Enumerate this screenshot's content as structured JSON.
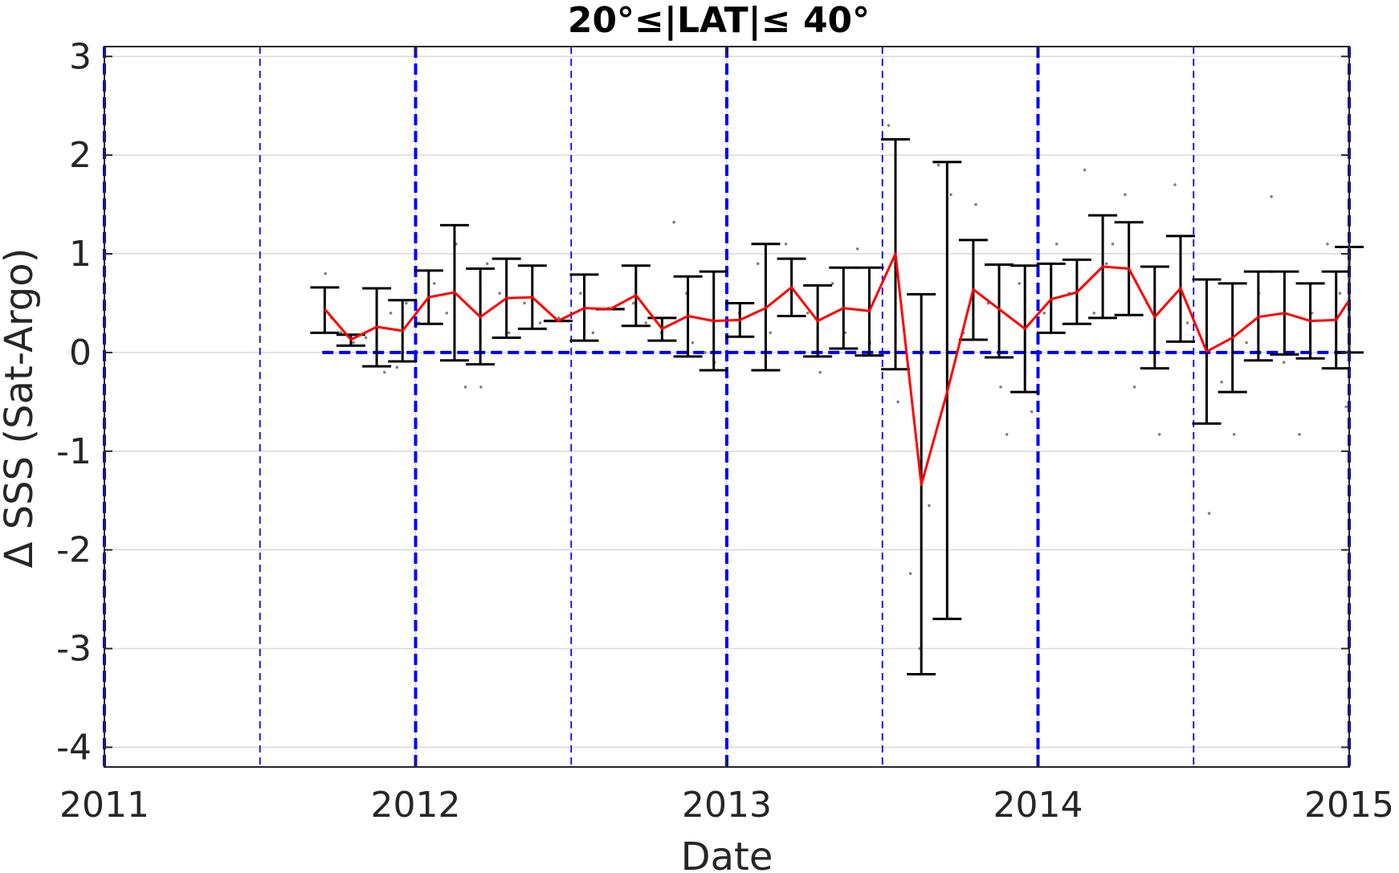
{
  "chart_data": {
    "type": "line",
    "title": "20°≤|LAT|≤ 40°",
    "xlabel": "Date",
    "ylabel": "Δ SSS (Sat-Argo)",
    "xlim": [
      2011,
      2015
    ],
    "ylim": [
      -4.2,
      3.1
    ],
    "x_ticks": [
      2011,
      2012,
      2013,
      2014,
      2015
    ],
    "x_tick_labels": [
      "2011",
      "2012",
      "2013",
      "2014",
      "2015"
    ],
    "y_ticks": [
      3,
      2,
      1,
      0,
      -1,
      -2,
      -3,
      -4
    ],
    "y_tick_labels": [
      "3",
      "2",
      "1",
      "0",
      "-1",
      "-2",
      "-3",
      "-4"
    ],
    "grid": true,
    "colors": {
      "mean_line": "#ff0000",
      "error_bars": "#000000",
      "scatter": "#808080",
      "reference_lines": "#0000ff",
      "grid": "#d9d9d9",
      "axes": "#262626"
    },
    "reference_lines": {
      "zero_line": {
        "y": 0,
        "x_from": 2011.7
      },
      "year_boundaries": [
        2011,
        2012,
        2013,
        2014,
        2015
      ],
      "half_year_lines": [
        2011.5,
        2012.5,
        2013.5,
        2014.5
      ]
    },
    "series": [
      {
        "kind": "monthly_mean_with_error_bars",
        "x": [
          2011.708,
          2011.792,
          2011.875,
          2011.958,
          2012.042,
          2012.125,
          2012.208,
          2012.292,
          2012.375,
          2012.458,
          2012.542,
          2012.625,
          2012.708,
          2012.792,
          2012.875,
          2012.958,
          2013.042,
          2013.125,
          2013.208,
          2013.292,
          2013.375,
          2013.458,
          2013.542,
          2013.625,
          2013.708,
          2013.792,
          2013.875,
          2013.958,
          2014.042,
          2014.125,
          2014.208,
          2014.292,
          2014.375,
          2014.458,
          2014.542,
          2014.625,
          2014.708,
          2014.792,
          2014.875,
          2014.958,
          2015.0
        ],
        "mean": [
          0.44,
          0.13,
          0.26,
          0.22,
          0.56,
          0.61,
          0.36,
          0.55,
          0.56,
          0.32,
          0.45,
          0.44,
          0.58,
          0.24,
          0.37,
          0.32,
          0.33,
          0.45,
          0.66,
          0.32,
          0.45,
          0.42,
          1.0,
          -1.34,
          -0.4,
          0.64,
          0.44,
          0.24,
          0.54,
          0.61,
          0.87,
          0.85,
          0.36,
          0.65,
          0.01,
          0.15,
          0.36,
          0.4,
          0.32,
          0.33,
          0.53
        ],
        "upper": [
          0.66,
          0.18,
          0.65,
          0.53,
          0.83,
          1.29,
          0.85,
          0.95,
          0.88,
          0.32,
          0.79,
          0.44,
          0.88,
          0.35,
          0.77,
          0.82,
          0.5,
          1.1,
          0.95,
          0.68,
          0.86,
          0.86,
          2.16,
          0.59,
          1.93,
          1.14,
          0.89,
          0.88,
          0.9,
          0.94,
          1.39,
          1.32,
          0.87,
          1.18,
          0.74,
          0.7,
          0.82,
          0.82,
          0.7,
          0.82,
          1.07
        ],
        "lower": [
          0.2,
          0.07,
          -0.14,
          -0.09,
          0.29,
          -0.08,
          -0.12,
          0.15,
          0.24,
          0.32,
          0.12,
          0.44,
          0.27,
          0.12,
          -0.04,
          -0.18,
          0.16,
          -0.18,
          0.37,
          -0.04,
          0.04,
          -0.03,
          -0.17,
          -3.26,
          -2.7,
          0.13,
          -0.05,
          -0.4,
          0.2,
          0.29,
          0.35,
          0.38,
          -0.16,
          0.11,
          -0.72,
          -0.4,
          -0.08,
          -0.02,
          -0.06,
          -0.16,
          0.0
        ]
      },
      {
        "kind": "individual_points",
        "x": [
          2011.71,
          2011.73,
          2011.76,
          2011.8,
          2011.84,
          2011.9,
          2011.92,
          2011.94,
          2011.97,
          2012.01,
          2012.06,
          2012.1,
          2012.13,
          2012.16,
          2012.21,
          2012.23,
          2012.27,
          2012.3,
          2012.35,
          2012.4,
          2012.46,
          2012.53,
          2012.57,
          2012.62,
          2012.7,
          2012.74,
          2012.79,
          2012.83,
          2012.87,
          2012.89,
          2012.93,
          2012.96,
          2013.04,
          2013.1,
          2013.14,
          2013.19,
          2013.26,
          2013.3,
          2013.34,
          2013.38,
          2013.42,
          2013.46,
          2013.52,
          2013.55,
          2013.59,
          2013.62,
          2013.65,
          2013.68,
          2013.72,
          2013.76,
          2013.8,
          2013.84,
          2013.88,
          2013.9,
          2013.94,
          2013.98,
          2014.02,
          2014.06,
          2014.1,
          2014.15,
          2014.18,
          2014.22,
          2014.24,
          2014.28,
          2014.31,
          2014.35,
          2014.39,
          2014.44,
          2014.48,
          2014.5,
          2014.55,
          2014.59,
          2014.63,
          2014.67,
          2014.71,
          2014.75,
          2014.79,
          2014.84,
          2014.88,
          2014.93,
          2014.97,
          2014.99
        ],
        "y": [
          0.8,
          0.35,
          0.2,
          0.1,
          0.15,
          -0.2,
          0.4,
          -0.15,
          0.5,
          0.3,
          0.7,
          0.4,
          1.1,
          -0.35,
          -0.35,
          0.9,
          0.6,
          0.2,
          0.5,
          0.3,
          0.35,
          0.6,
          0.2,
          0.45,
          0.5,
          0.3,
          0.2,
          1.32,
          0.6,
          0.1,
          0.0,
          -0.1,
          0.4,
          0.9,
          0.2,
          1.1,
          0.4,
          -0.2,
          0.7,
          0.2,
          1.05,
          0.1,
          2.3,
          -0.5,
          -2.24,
          -3.0,
          -1.55,
          1.9,
          1.6,
          0.2,
          1.5,
          0.5,
          -0.35,
          -0.83,
          0.7,
          -0.6,
          0.4,
          1.1,
          0.6,
          1.85,
          0.4,
          0.9,
          1.1,
          1.6,
          -0.35,
          0.5,
          -0.83,
          1.7,
          0.3,
          0.9,
          -1.63,
          -0.3,
          -0.83,
          0.1,
          0.6,
          1.58,
          -0.1,
          -0.83,
          0.4,
          1.1,
          0.6,
          -0.55
        ]
      }
    ]
  }
}
